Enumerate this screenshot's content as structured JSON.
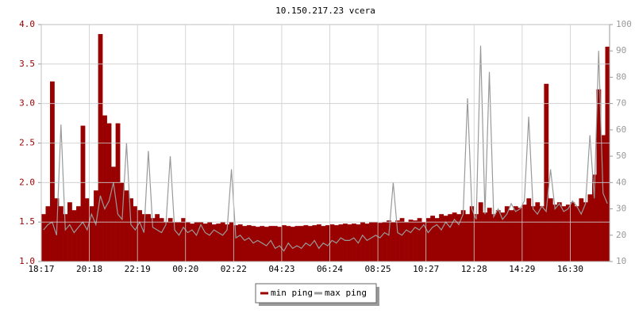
{
  "chart_data": {
    "type": "bar-line",
    "title": "10.150.217.23 vcera",
    "grid": true,
    "categories": [
      "18:17",
      null,
      null,
      null,
      null,
      null,
      null,
      null,
      null,
      null,
      null,
      "20:18",
      null,
      null,
      null,
      null,
      null,
      null,
      null,
      null,
      null,
      null,
      "22:19",
      null,
      null,
      null,
      null,
      null,
      null,
      null,
      null,
      null,
      null,
      "00:20",
      null,
      null,
      null,
      null,
      null,
      null,
      null,
      null,
      null,
      null,
      "02:22",
      null,
      null,
      null,
      null,
      null,
      null,
      null,
      null,
      null,
      null,
      "04:23",
      null,
      null,
      null,
      null,
      null,
      null,
      null,
      null,
      null,
      null,
      "06:24",
      null,
      null,
      null,
      null,
      null,
      null,
      null,
      null,
      null,
      null,
      "08:25",
      null,
      null,
      null,
      null,
      null,
      null,
      null,
      null,
      null,
      null,
      "10:27",
      null,
      null,
      null,
      null,
      null,
      null,
      null,
      null,
      null,
      null,
      "12:28",
      null,
      null,
      null,
      null,
      null,
      null,
      null,
      null,
      null,
      null,
      "14:29",
      null,
      null,
      null,
      null,
      null,
      null,
      null,
      null,
      null,
      null,
      "16:30",
      null,
      null,
      null,
      null,
      null,
      null,
      null,
      null
    ],
    "ylim": [
      1,
      4
    ],
    "yticks": [
      {
        "value": 1,
        "label": "1.0"
      },
      1.5,
      {
        "value": 2,
        "label": "2.0"
      },
      2.5,
      {
        "value": 3,
        "label": "3.0"
      },
      3.5,
      {
        "value": 4,
        "label": "4.0"
      }
    ],
    "y2lim": [
      10,
      100
    ],
    "y2ticks": [
      10,
      20,
      30,
      40,
      50,
      60,
      70,
      80,
      90,
      100
    ],
    "series": [
      {
        "name": "min ping",
        "color": "#990000",
        "values": [
          1.6,
          1.7,
          3.28,
          1.8,
          1.7,
          1.6,
          1.75,
          1.65,
          1.7,
          2.72,
          1.8,
          1.7,
          1.9,
          3.88,
          2.85,
          2.75,
          2.2,
          2.75,
          2.0,
          1.9,
          1.8,
          1.7,
          1.65,
          1.6,
          1.6,
          1.55,
          1.6,
          1.55,
          1.5,
          1.55,
          1.5,
          1.5,
          1.55,
          1.5,
          1.48,
          1.5,
          1.5,
          1.48,
          1.5,
          1.47,
          1.48,
          1.5,
          1.47,
          1.5,
          1.46,
          1.47,
          1.45,
          1.46,
          1.45,
          1.44,
          1.45,
          1.44,
          1.45,
          1.45,
          1.44,
          1.46,
          1.45,
          1.44,
          1.45,
          1.45,
          1.46,
          1.45,
          1.46,
          1.47,
          1.45,
          1.46,
          1.47,
          1.46,
          1.47,
          1.48,
          1.47,
          1.48,
          1.47,
          1.5,
          1.48,
          1.5,
          1.5,
          1.49,
          1.5,
          1.52,
          1.5,
          1.52,
          1.55,
          1.5,
          1.53,
          1.52,
          1.55,
          1.5,
          1.55,
          1.58,
          1.55,
          1.6,
          1.58,
          1.6,
          1.62,
          1.6,
          1.65,
          1.6,
          1.7,
          1.6,
          1.75,
          1.62,
          1.68,
          1.6,
          1.65,
          1.62,
          1.7,
          1.65,
          1.7,
          1.68,
          1.72,
          1.8,
          1.7,
          1.75,
          1.7,
          3.25,
          1.8,
          1.72,
          1.75,
          1.7,
          1.72,
          1.75,
          1.7,
          1.8,
          1.75,
          1.85,
          2.1,
          3.18,
          2.6,
          3.72
        ]
      },
      {
        "name": "max ping",
        "color": "#999999",
        "axis": "y2",
        "values": [
          22,
          24,
          25,
          20,
          62,
          22,
          24,
          21,
          23,
          25,
          22,
          28,
          24,
          35,
          30,
          33,
          40,
          28,
          26,
          55,
          24,
          22,
          25,
          21,
          52,
          23,
          22,
          21,
          24,
          50,
          22,
          20,
          23,
          21,
          22,
          20,
          24,
          21,
          20,
          22,
          21,
          20,
          22,
          45,
          19,
          20,
          18,
          19,
          17,
          18,
          17,
          16,
          18,
          15,
          16,
          14,
          17,
          15,
          16,
          15,
          17,
          16,
          18,
          15,
          17,
          16,
          18,
          17,
          19,
          18,
          18,
          19,
          17,
          20,
          18,
          19,
          20,
          19,
          21,
          20,
          40,
          21,
          20,
          22,
          21,
          23,
          22,
          24,
          21,
          23,
          24,
          22,
          25,
          23,
          26,
          24,
          28,
          72,
          30,
          26,
          92,
          28,
          82,
          27,
          30,
          26,
          28,
          32,
          29,
          30,
          33,
          65,
          30,
          28,
          31,
          29,
          45,
          30,
          32,
          29,
          30,
          33,
          31,
          28,
          32,
          58,
          34,
          90,
          36,
          32
        ]
      }
    ]
  }
}
